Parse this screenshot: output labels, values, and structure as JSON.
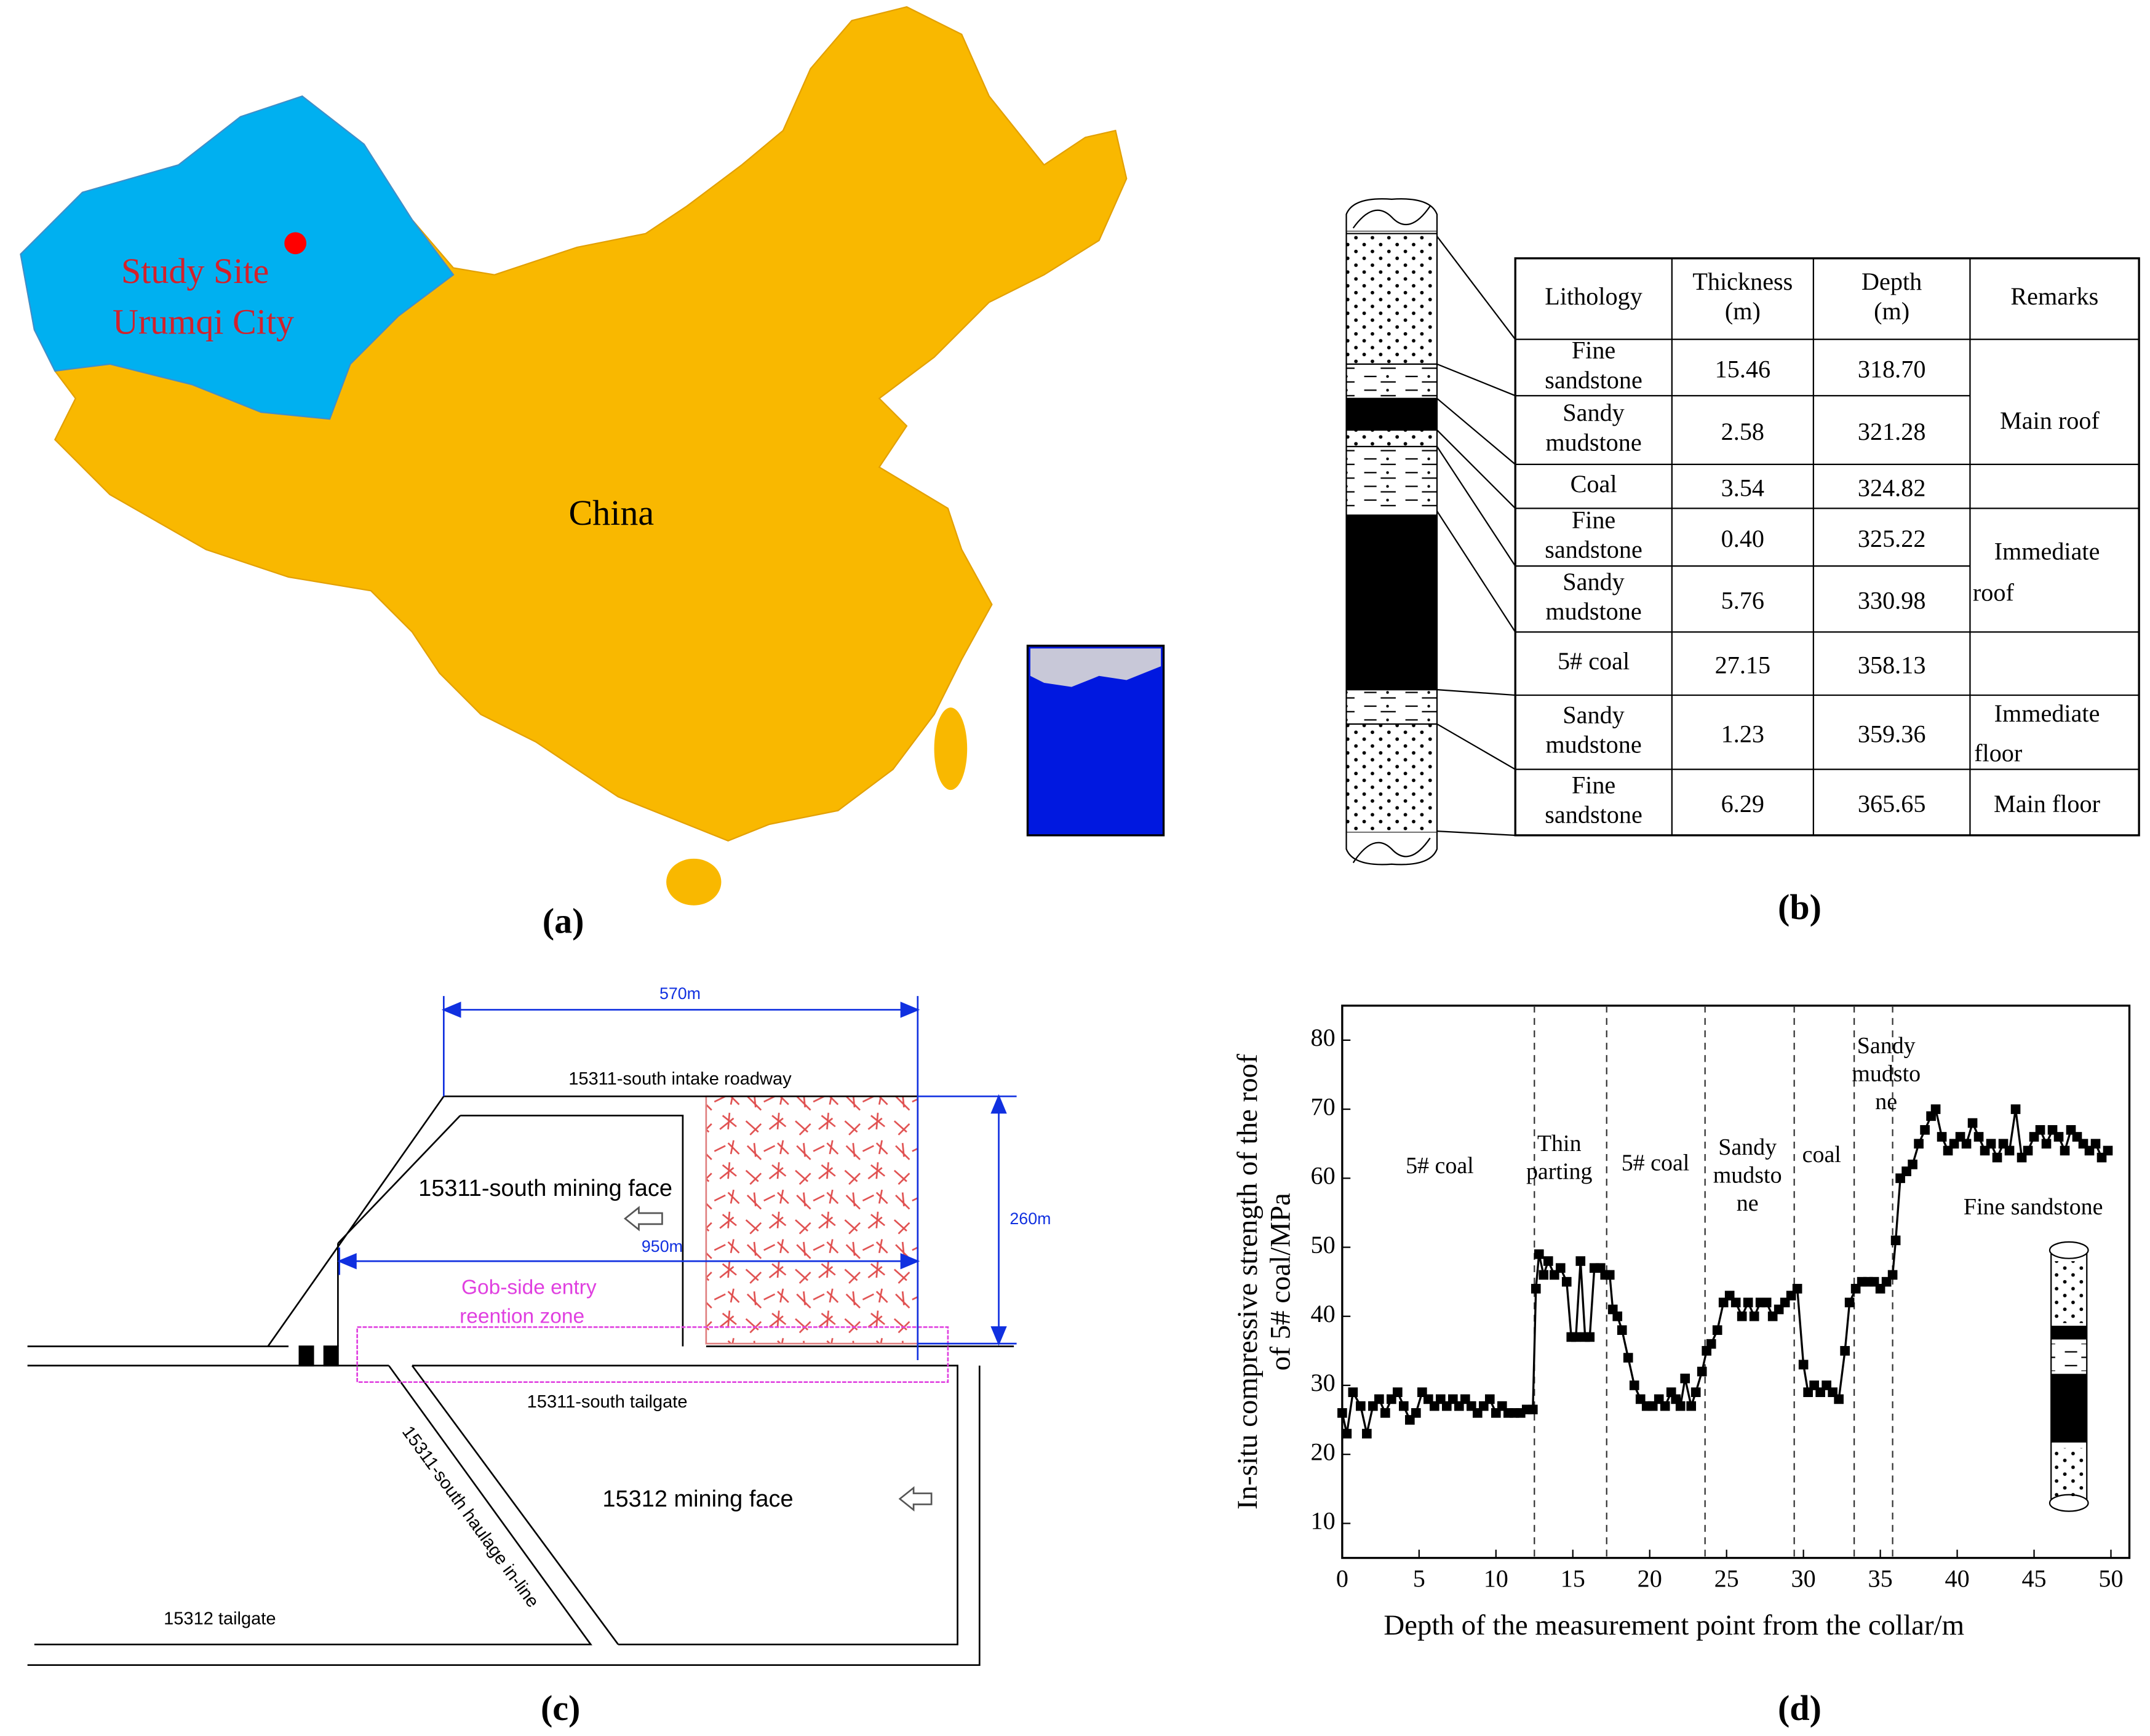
{
  "map": {
    "site_label": [
      "Study Site",
      "Urumqi City"
    ],
    "country_label": "China",
    "caption": "(a)"
  },
  "column_table": {
    "header": [
      [
        "Lithology"
      ],
      [
        "Thickness",
        "(m)"
      ],
      [
        "Depth",
        "(m)"
      ],
      [
        "Remarks"
      ]
    ],
    "rows": [
      {
        "lithology": [
          "Fine",
          "sandstone"
        ],
        "thickness": "15.46",
        "depth": "318.70"
      },
      {
        "lithology": [
          "Sandy",
          "mudstone"
        ],
        "thickness": "2.58",
        "depth": "321.28"
      },
      {
        "lithology": [
          "Coal"
        ],
        "thickness": "3.54",
        "depth": "324.82"
      },
      {
        "lithology": [
          "Fine",
          "sandstone"
        ],
        "thickness": "0.40",
        "depth": "325.22"
      },
      {
        "lithology": [
          "Sandy",
          "mudstone"
        ],
        "thickness": "5.76",
        "depth": "330.98"
      },
      {
        "lithology": [
          "5# coal"
        ],
        "thickness": "27.15",
        "depth": "358.13"
      },
      {
        "lithology": [
          "Sandy",
          "mudstone"
        ],
        "thickness": "1.23",
        "depth": "359.36"
      },
      {
        "lithology": [
          "Fine",
          "sandstone"
        ],
        "thickness": "6.29",
        "depth": "365.65"
      }
    ],
    "remarks": [
      [
        "Main roof"
      ],
      [
        "Immediate",
        "roof"
      ],
      [
        "Immediate",
        "floor"
      ],
      [
        "Main floor"
      ]
    ],
    "caption": "(b)"
  },
  "layout": {
    "dim_width": "570m",
    "dim_height": "260m",
    "dim_gob": "950m",
    "intake": "15311-south intake roadway",
    "face_15311": "15311-south mining face",
    "gob_zone": [
      "Gob-side entry",
      "reention zone"
    ],
    "tailgate_15311": "15311-south tailgate",
    "haulage": "15311-south haulage in-line",
    "face_15312": "15312 mining face",
    "tailgate_15312": "15312 tailgate",
    "caption": "(c)"
  },
  "chart_data": {
    "type": "line",
    "xlabel": "Depth of the measurement point from the collar/m",
    "ylabel": [
      "In-situ compressive strength of the roof",
      "of 5# coal/MPa"
    ],
    "x": [
      0,
      0.3,
      0.7,
      1.2,
      1.6,
      2,
      2.4,
      2.8,
      3.2,
      3.6,
      4,
      4.4,
      4.8,
      5.2,
      5.6,
      6,
      6.4,
      6.8,
      7.2,
      7.6,
      8,
      8.4,
      8.8,
      9.2,
      9.6,
      10,
      10.4,
      10.8,
      11.2,
      11.6,
      12,
      12.4,
      12.6,
      12.8,
      13.1,
      13.4,
      13.8,
      14.2,
      14.6,
      14.9,
      15.2,
      15.5,
      15.8,
      16.1,
      16.4,
      16.8,
      17.1,
      17.4,
      17.6,
      17.9,
      18.2,
      18.6,
      19,
      19.4,
      19.8,
      20.2,
      20.6,
      21,
      21.4,
      21.7,
      22,
      22.3,
      22.7,
      23,
      23.4,
      23.7,
      24,
      24.4,
      24.8,
      25.2,
      25.6,
      26,
      26.4,
      26.8,
      27.2,
      27.6,
      28,
      28.4,
      28.8,
      29.2,
      29.6,
      30,
      30.3,
      30.7,
      31.1,
      31.5,
      31.9,
      32.3,
      32.7,
      33,
      33.4,
      33.8,
      34.2,
      34.6,
      35,
      35.4,
      35.8,
      36,
      36.3,
      36.7,
      37.1,
      37.5,
      37.9,
      38.3,
      38.6,
      39,
      39.4,
      39.8,
      40.2,
      40.6,
      41,
      41.4,
      41.8,
      42.2,
      42.6,
      43,
      43.4,
      43.8,
      44.2,
      44.6,
      45,
      45.4,
      45.8,
      46.2,
      46.6,
      47,
      47.4,
      47.8,
      48.2,
      48.6,
      49,
      49.4,
      49.8
    ],
    "series": [
      {
        "color": "#000000",
        "values": [
          26,
          23,
          29,
          27,
          23,
          27,
          28,
          26,
          28,
          29,
          27,
          25,
          26,
          29,
          28,
          27,
          28,
          27,
          28,
          27,
          28,
          27,
          26,
          27,
          28,
          26,
          27,
          26,
          26,
          26,
          26.5,
          26.5,
          44,
          49,
          46,
          48,
          46,
          47,
          45,
          37,
          37,
          48,
          37,
          37,
          47,
          47,
          46,
          46,
          41,
          40,
          38,
          34,
          30,
          28,
          27,
          27,
          28,
          27,
          29,
          28,
          27,
          31,
          27,
          29,
          32,
          35,
          36,
          38,
          42,
          43,
          42,
          40,
          42,
          40,
          42,
          42,
          40,
          41,
          42,
          43,
          44,
          33,
          29,
          30,
          29,
          30,
          29,
          28,
          35,
          42,
          44,
          45,
          45,
          45,
          44,
          45,
          46,
          51,
          60,
          61,
          62,
          65,
          67,
          69,
          70,
          66,
          64,
          65,
          66,
          65,
          68,
          66,
          64,
          65,
          63,
          65,
          64,
          70,
          63,
          64,
          66,
          67,
          65,
          67,
          66,
          64,
          67,
          66,
          65,
          64,
          65,
          63,
          64
        ]
      }
    ],
    "xlim": [
      0,
      51.2
    ],
    "ylim": [
      5,
      85
    ],
    "xticks": [
      0,
      5,
      10,
      15,
      20,
      25,
      30,
      35,
      40,
      45,
      50
    ],
    "yticks": [
      10,
      20,
      30,
      40,
      50,
      60,
      70,
      80
    ],
    "boundaries": [
      12.5,
      17.2,
      23.6,
      29.4,
      33.3,
      35.8
    ],
    "annotations": [
      [
        "5# coal"
      ],
      [
        "Thin",
        "parting"
      ],
      [
        "5# coal"
      ],
      [
        "Sandy",
        "mudsto",
        "ne"
      ],
      [
        "coal"
      ],
      [
        "Sandy",
        "mudsto",
        "ne"
      ],
      [
        "Fine sandstone"
      ]
    ]
  },
  "chart_caption": "(d)"
}
